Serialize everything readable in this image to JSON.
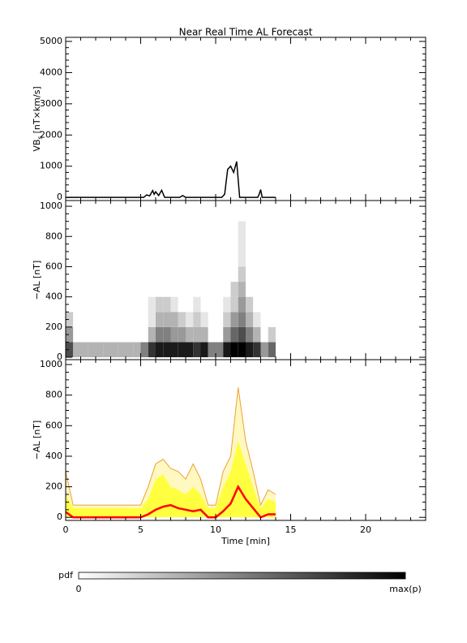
{
  "chart_data": [
    {
      "type": "line",
      "title": "Near Real Time AL Forecast",
      "ylabel_parts": [
        "VB",
        "s",
        "[nT×km/s]"
      ],
      "x": [
        0,
        5.2,
        5.4,
        5.6,
        5.8,
        5.9,
        6.0,
        6.2,
        6.4,
        6.6,
        7.6,
        7.8,
        8.0,
        10.4,
        10.6,
        10.8,
        11.0,
        11.2,
        11.4,
        11.6,
        12.8,
        12.9,
        13.0,
        13.1,
        14
      ],
      "values": [
        0,
        0,
        80,
        50,
        220,
        100,
        180,
        60,
        230,
        0,
        0,
        60,
        0,
        0,
        100,
        900,
        1000,
        800,
        1150,
        0,
        0,
        100,
        250,
        0,
        0
      ],
      "color": "#000000",
      "xlim": [
        0,
        24
      ],
      "xticks": [
        0,
        5,
        10,
        15,
        20
      ],
      "x_minor_divisions": 5,
      "ylim": [
        -100,
        5130
      ],
      "yticks": [
        0,
        1000,
        2000,
        3000,
        4000,
        5000
      ],
      "y_minor_divisions": 5
    },
    {
      "type": "heatmap",
      "ylabel": "−AL [nT]",
      "x_edges": [
        0,
        0.5,
        1,
        1.5,
        2,
        2.5,
        3,
        3.5,
        4,
        4.5,
        5,
        5.5,
        6,
        6.5,
        7,
        7.5,
        8,
        8.5,
        9,
        9.5,
        10,
        10.5,
        11,
        11.5,
        12,
        12.5,
        13,
        13.5,
        14
      ],
      "y_edges": [
        0,
        100,
        200,
        300,
        400,
        500,
        600,
        700,
        800,
        900
      ],
      "z": [
        [
          0.7,
          0.3,
          0.3,
          0.3,
          0.3,
          0.3,
          0.3,
          0.3,
          0.3,
          0.3,
          0.5,
          0.8,
          0.9,
          0.9,
          0.9,
          0.9,
          0.9,
          0.8,
          0.9,
          0.5,
          0.5,
          0.9,
          1,
          1,
          0.9,
          0.8,
          0.4,
          0.6
        ],
        [
          0.4,
          0,
          0,
          0,
          0,
          0,
          0,
          0,
          0,
          0,
          0,
          0.3,
          0.5,
          0.5,
          0.4,
          0.4,
          0.3,
          0.3,
          0.3,
          0,
          0,
          0.4,
          0.6,
          0.7,
          0.5,
          0.3,
          0,
          0.2
        ],
        [
          0.2,
          0,
          0,
          0,
          0,
          0,
          0,
          0,
          0,
          0,
          0,
          0.1,
          0.3,
          0.3,
          0.3,
          0.2,
          0.1,
          0.2,
          0.1,
          0,
          0,
          0.2,
          0.4,
          0.5,
          0.3,
          0.1,
          0,
          0
        ],
        [
          0,
          0,
          0,
          0,
          0,
          0,
          0,
          0,
          0,
          0,
          0,
          0.1,
          0.2,
          0.2,
          0.1,
          0,
          0,
          0.1,
          0,
          0,
          0,
          0.1,
          0.2,
          0.4,
          0.2,
          0,
          0,
          0
        ],
        [
          0,
          0,
          0,
          0,
          0,
          0,
          0,
          0,
          0,
          0,
          0,
          0,
          0,
          0,
          0,
          0,
          0,
          0,
          0,
          0,
          0,
          0,
          0.2,
          0.3,
          0,
          0,
          0,
          0
        ],
        [
          0,
          0,
          0,
          0,
          0,
          0,
          0,
          0,
          0,
          0,
          0,
          0,
          0,
          0,
          0,
          0,
          0,
          0,
          0,
          0,
          0,
          0,
          0,
          0.2,
          0,
          0,
          0,
          0
        ],
        [
          0,
          0,
          0,
          0,
          0,
          0,
          0,
          0,
          0,
          0,
          0,
          0,
          0,
          0,
          0,
          0,
          0,
          0,
          0,
          0,
          0,
          0,
          0,
          0.1,
          0,
          0,
          0,
          0
        ],
        [
          0,
          0,
          0,
          0,
          0,
          0,
          0,
          0,
          0,
          0,
          0,
          0,
          0,
          0,
          0,
          0,
          0,
          0,
          0,
          0,
          0,
          0,
          0,
          0.1,
          0,
          0,
          0,
          0
        ],
        [
          0,
          0,
          0,
          0,
          0,
          0,
          0,
          0,
          0,
          0,
          0,
          0,
          0,
          0,
          0,
          0,
          0,
          0,
          0,
          0,
          0,
          0,
          0,
          0.1,
          0,
          0,
          0,
          0
        ]
      ],
      "colorbar": {
        "label": "pdf",
        "min_label": "0",
        "max_label": "max(p)",
        "colors": [
          "#ffffff",
          "#000000"
        ]
      },
      "xlim": [
        0,
        24
      ],
      "xticks": [
        0,
        5,
        10,
        15,
        20
      ],
      "x_minor_divisions": 5,
      "ylim": [
        -16,
        1038
      ],
      "yticks": [
        0,
        200,
        400,
        600,
        800,
        1000
      ],
      "y_minor_divisions": 4
    },
    {
      "type": "area",
      "ylabel": "−AL [nT]",
      "xlabel": "Time [min]",
      "x": [
        0,
        0.5,
        1,
        1.5,
        2,
        2.5,
        3,
        3.5,
        4,
        4.5,
        5,
        5.5,
        6,
        6.5,
        7,
        7.5,
        8,
        8.5,
        9,
        9.5,
        10,
        10.5,
        11,
        11.5,
        12,
        12.5,
        13,
        13.5,
        14
      ],
      "series": [
        {
          "color": "#f0a030",
          "fill": "#fff8c0",
          "values": [
            300,
            80,
            80,
            80,
            80,
            80,
            80,
            80,
            80,
            80,
            80,
            200,
            350,
            380,
            320,
            300,
            250,
            350,
            250,
            80,
            80,
            300,
            400,
            850,
            500,
            300,
            80,
            180,
            150
          ]
        },
        {
          "fill": "#ffff40",
          "values": [
            150,
            60,
            60,
            60,
            60,
            60,
            60,
            60,
            60,
            60,
            60,
            120,
            250,
            280,
            200,
            180,
            150,
            200,
            150,
            60,
            60,
            200,
            300,
            500,
            350,
            200,
            60,
            120,
            100
          ]
        },
        {
          "color": "#ff0000",
          "line_width": 2.5,
          "values": [
            35,
            0,
            0,
            0,
            0,
            0,
            0,
            0,
            0,
            0,
            0,
            20,
            50,
            70,
            80,
            60,
            50,
            40,
            50,
            0,
            0,
            40,
            90,
            200,
            120,
            60,
            0,
            20,
            20
          ]
        }
      ],
      "xlim": [
        0,
        24
      ],
      "xticks": [
        0,
        5,
        10,
        15,
        20
      ],
      "x_minor_divisions": 5,
      "ylim": [
        -20,
        1032
      ],
      "yticks": [
        0,
        200,
        400,
        600,
        800,
        1000
      ],
      "y_minor_divisions": 4
    }
  ]
}
